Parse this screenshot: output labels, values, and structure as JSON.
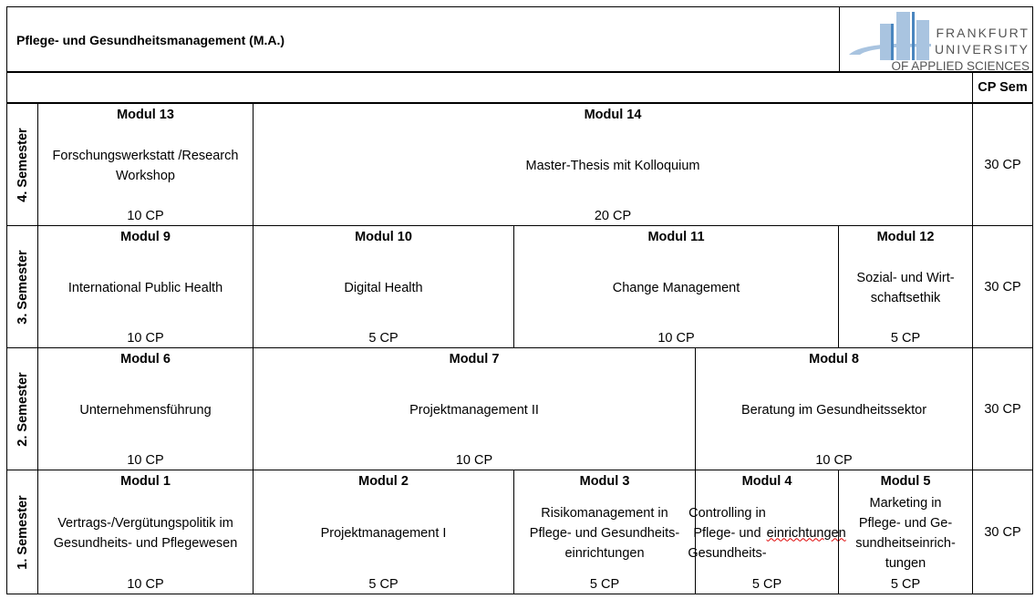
{
  "title": "Pflege- und Gesundheitsmanagement (M.A.)",
  "logo": {
    "lines": [
      "FRANKFURT",
      "UNIVERSITY",
      "OF APPLIED SCIENCES"
    ],
    "color": "#a9c4e0",
    "accent": "#4a86bf"
  },
  "cp_sem_header": "CP Sem",
  "semesters": [
    {
      "label": "4. Semester",
      "cp": "30 CP",
      "modules": [
        {
          "name": "Modul 13",
          "desc": "Forschungswerkstatt /Research\nWorkshop",
          "cp": "10 CP"
        },
        {
          "name": "Modul 14",
          "desc": "Master-Thesis mit Kolloquium",
          "cp": "20 CP"
        }
      ]
    },
    {
      "label": "3. Semester",
      "cp": "30 CP",
      "modules": [
        {
          "name": "Modul 9",
          "desc": "International Public Health",
          "cp": "10 CP"
        },
        {
          "name": "Modul 10",
          "desc": "Digital Health",
          "cp": "5 CP"
        },
        {
          "name": "Modul 11",
          "desc": "Change Management",
          "cp": "10 CP"
        },
        {
          "name": "Modul 12",
          "desc": "Sozial- und Wirt-\nschaftsethik",
          "cp": "5 CP"
        }
      ]
    },
    {
      "label": "2. Semester",
      "cp": "30 CP",
      "modules": [
        {
          "name": "Modul 6",
          "desc": "Unternehmensführung",
          "cp": "10 CP"
        },
        {
          "name": "Modul 7",
          "desc": "Projektmanagement II",
          "cp": "10 CP"
        },
        {
          "name": "Modul 8",
          "desc": "Beratung im Gesundheitssektor",
          "cp": "10 CP"
        }
      ]
    },
    {
      "label": "1. Semester",
      "cp": "30 CP",
      "modules": [
        {
          "name": "Modul 1",
          "desc": "Vertrags-/Vergütungspolitik im\nGesundheits- und Pflegewesen",
          "cp": "10 CP"
        },
        {
          "name": "Modul 2",
          "desc": "Projektmanagement I",
          "cp": "5 CP"
        },
        {
          "name": "Modul 3",
          "desc": "Risikomanagement in\nPflege- und Gesundheits-\neinrichtungen",
          "cp": "5 CP"
        },
        {
          "name": "Modul 4",
          "desc": "Controlling in\nPflege- und\nGesundheits-\neinrichtungen",
          "cp": "5 CP"
        },
        {
          "name": "Modul 5",
          "desc": "Marketing in\nPflege- und Ge-\nsundheitseinrich-\ntungen",
          "cp": "5 CP"
        }
      ]
    }
  ]
}
